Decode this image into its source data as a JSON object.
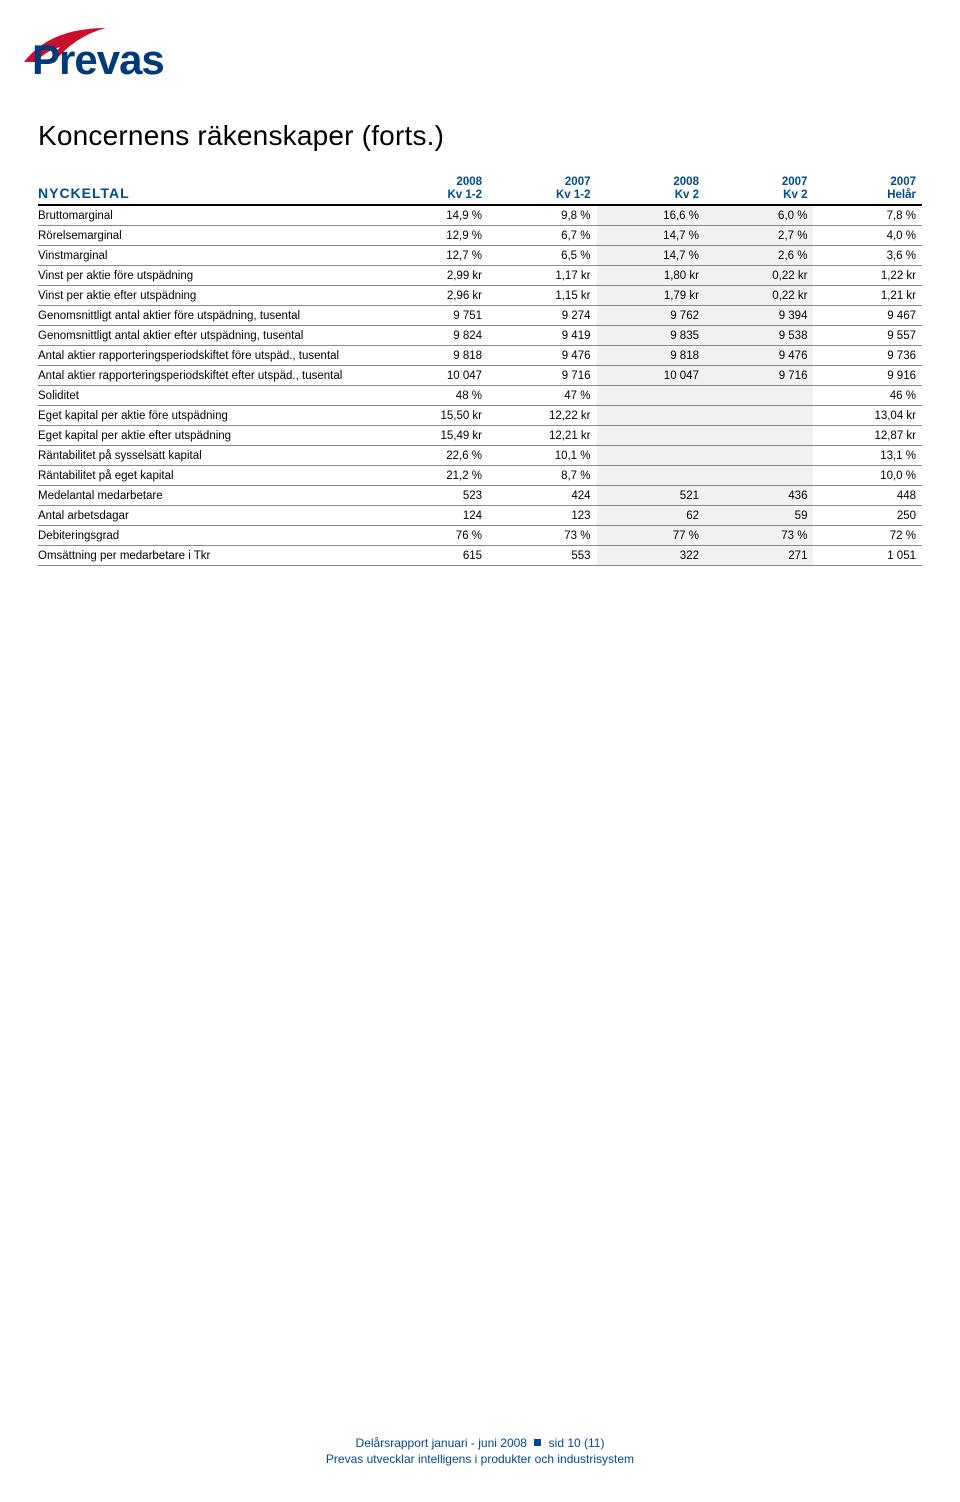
{
  "logo": {
    "brand": "Prevas",
    "arc_color": "#c8102e",
    "text_color": "#003a78"
  },
  "page_title": "Koncernens räkenskaper (forts.)",
  "table_heading": "NYCKELTAL",
  "columns": [
    {
      "l1": "2008",
      "l2": "Kv 1-2"
    },
    {
      "l1": "2007",
      "l2": "Kv 1-2"
    },
    {
      "l1": "2008",
      "l2": "Kv 2"
    },
    {
      "l1": "2007",
      "l2": "Kv 2"
    },
    {
      "l1": "2007",
      "l2": "Helår"
    }
  ],
  "rows": [
    {
      "label": "Bruttomarginal",
      "v": [
        "14,9 %",
        "9,8 %",
        "16,6 %",
        "6,0 %",
        "7,8 %"
      ]
    },
    {
      "label": "Rörelsemarginal",
      "v": [
        "12,9 %",
        "6,7 %",
        "14,7 %",
        "2,7 %",
        "4,0 %"
      ]
    },
    {
      "label": "Vinstmarginal",
      "v": [
        "12,7 %",
        "6,5 %",
        "14,7 %",
        "2,6 %",
        "3,6 %"
      ]
    },
    {
      "label": "Vinst per aktie före utspädning",
      "v": [
        "2,99 kr",
        "1,17 kr",
        "1,80 kr",
        "0,22 kr",
        "1,22 kr"
      ]
    },
    {
      "label": "Vinst per aktie efter utspädning",
      "v": [
        "2,96 kr",
        "1,15 kr",
        "1,79 kr",
        "0,22 kr",
        "1,21 kr"
      ]
    },
    {
      "label": "Genomsnittligt antal aktier före utspädning, tusental",
      "v": [
        "9 751",
        "9 274",
        "9 762",
        "9 394",
        "9 467"
      ]
    },
    {
      "label": "Genomsnittligt antal aktier efter utspädning, tusental",
      "v": [
        "9 824",
        "9 419",
        "9 835",
        "9 538",
        "9 557"
      ]
    },
    {
      "label": "Antal aktier rapporteringsperiodskiftet före utspäd., tusental",
      "v": [
        "9 818",
        "9 476",
        "9 818",
        "9 476",
        "9 736"
      ]
    },
    {
      "label": "Antal aktier rapporteringsperiodskiftet efter utspäd., tusental",
      "v": [
        "10 047",
        "9 716",
        "10 047",
        "9 716",
        "9 916"
      ]
    },
    {
      "label": "Soliditet",
      "v": [
        "48 %",
        "47 %",
        "",
        "",
        "46 %"
      ]
    },
    {
      "label": "Eget kapital per aktie före utspädning",
      "v": [
        "15,50 kr",
        "12,22 kr",
        "",
        "",
        "13,04 kr"
      ]
    },
    {
      "label": "Eget kapital per aktie efter utspädning",
      "v": [
        "15,49 kr",
        "12,21 kr",
        "",
        "",
        "12,87 kr"
      ]
    },
    {
      "label": "Räntabilitet på sysselsatt kapital",
      "v": [
        "22,6 %",
        "10,1 %",
        "",
        "",
        "13,1 %"
      ]
    },
    {
      "label": "Räntabilitet på eget kapital",
      "v": [
        "21,2 %",
        "8,7 %",
        "",
        "",
        "10,0 %"
      ]
    },
    {
      "label": "Medelantal medarbetare",
      "v": [
        "523",
        "424",
        "521",
        "436",
        "448"
      ]
    },
    {
      "label": "Antal arbetsdagar",
      "v": [
        "124",
        "123",
        "62",
        "59",
        "250"
      ]
    },
    {
      "label": "Debiteringsgrad",
      "v": [
        "76 %",
        "73 %",
        "77 %",
        "73 %",
        "72 %"
      ]
    },
    {
      "label": "Omsättning per medarbetare i Tkr",
      "v": [
        "615",
        "553",
        "322",
        "271",
        "1 051"
      ]
    }
  ],
  "footer": {
    "line1a": "Delårsrapport januari - juni 2008",
    "line1b": "sid 10 (11)",
    "line2": "Prevas utvecklar intelligens i produkter och industrisystem"
  },
  "style": {
    "header_text_color": "#004a8f",
    "row_border_color": "#8a8a8a",
    "shade_bg": "#f1f1f0",
    "header_border": "#000000"
  }
}
